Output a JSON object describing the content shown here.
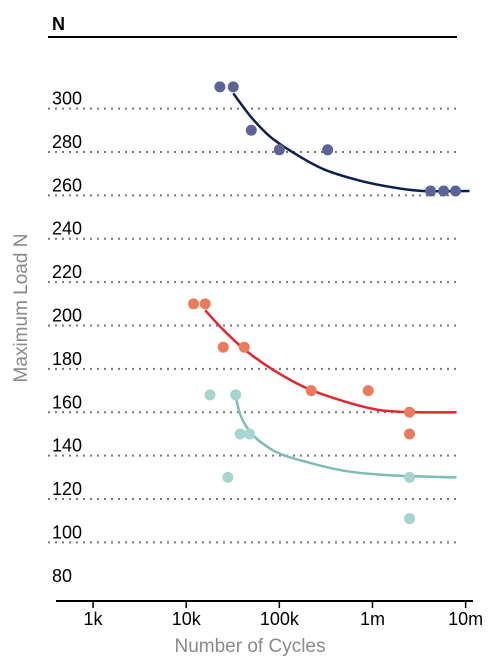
{
  "chart_data": {
    "type": "scatter",
    "xlabel": "Number of Cycles",
    "ylabel": "Maximum Load N",
    "y_unit_label": "N",
    "x_scale": "log",
    "xlim": [
      400,
      12000000
    ],
    "ylim": [
      73,
      333
    ],
    "x_ticks": [
      {
        "value": 1000,
        "label": "1k"
      },
      {
        "value": 10000,
        "label": "10k"
      },
      {
        "value": 100000,
        "label": "100k"
      },
      {
        "value": 1000000,
        "label": "1m"
      },
      {
        "value": 10000000,
        "label": "10m"
      }
    ],
    "y_ticks": [
      {
        "value": 80,
        "label": "80"
      },
      {
        "value": 100,
        "label": "100"
      },
      {
        "value": 120,
        "label": "120"
      },
      {
        "value": 140,
        "label": "140"
      },
      {
        "value": 160,
        "label": "160"
      },
      {
        "value": 180,
        "label": "180"
      },
      {
        "value": 200,
        "label": "200"
      },
      {
        "value": 220,
        "label": "220"
      },
      {
        "value": 240,
        "label": "240"
      },
      {
        "value": 260,
        "label": "260"
      },
      {
        "value": 280,
        "label": "280"
      },
      {
        "value": 300,
        "label": "300"
      }
    ],
    "gridlines": [
      100,
      120,
      140,
      160,
      180,
      200,
      220,
      240,
      260,
      280,
      300
    ],
    "grid_style": "dotted-horizontal",
    "series": [
      {
        "color": "#5b6495",
        "line_color": "#0d2150",
        "points": [
          {
            "x": 23000,
            "y": 310
          },
          {
            "x": 32000,
            "y": 310
          },
          {
            "x": 50000,
            "y": 290
          },
          {
            "x": 100000,
            "y": 281
          },
          {
            "x": 330000,
            "y": 281
          },
          {
            "x": 4200000,
            "y": 262
          },
          {
            "x": 5800000,
            "y": 262
          },
          {
            "x": 7800000,
            "y": 262
          }
        ],
        "fit": [
          {
            "x": 32000,
            "y": 307
          },
          {
            "x": 50000,
            "y": 296
          },
          {
            "x": 80000,
            "y": 287
          },
          {
            "x": 150000,
            "y": 279
          },
          {
            "x": 300000,
            "y": 272
          },
          {
            "x": 700000,
            "y": 267
          },
          {
            "x": 1500000,
            "y": 264
          },
          {
            "x": 3500000,
            "y": 262
          },
          {
            "x": 11000000,
            "y": 262
          }
        ]
      },
      {
        "color": "#ec7b5b",
        "line_color": "#e3262f",
        "points": [
          {
            "x": 12000,
            "y": 210
          },
          {
            "x": 16000,
            "y": 210
          },
          {
            "x": 25000,
            "y": 190
          },
          {
            "x": 42000,
            "y": 190
          },
          {
            "x": 220000,
            "y": 170
          },
          {
            "x": 900000,
            "y": 170
          },
          {
            "x": 2500000,
            "y": 160
          },
          {
            "x": 2500000,
            "y": 150
          }
        ],
        "fit": [
          {
            "x": 16000,
            "y": 207
          },
          {
            "x": 25000,
            "y": 198
          },
          {
            "x": 45000,
            "y": 188
          },
          {
            "x": 90000,
            "y": 179
          },
          {
            "x": 200000,
            "y": 171
          },
          {
            "x": 500000,
            "y": 165
          },
          {
            "x": 1200000,
            "y": 161
          },
          {
            "x": 3000000,
            "y": 160
          },
          {
            "x": 8000000,
            "y": 160
          }
        ]
      },
      {
        "color": "#a6d4d0",
        "line_color": "#7fbcb8",
        "points": [
          {
            "x": 18000,
            "y": 168
          },
          {
            "x": 34000,
            "y": 168
          },
          {
            "x": 38000,
            "y": 150
          },
          {
            "x": 48000,
            "y": 150
          },
          {
            "x": 28000,
            "y": 130
          },
          {
            "x": 2500000,
            "y": 130
          },
          {
            "x": 2500000,
            "y": 111
          }
        ],
        "fit": [
          {
            "x": 34000,
            "y": 167
          },
          {
            "x": 38000,
            "y": 159
          },
          {
            "x": 45000,
            "y": 153
          },
          {
            "x": 60000,
            "y": 147
          },
          {
            "x": 100000,
            "y": 141
          },
          {
            "x": 200000,
            "y": 137
          },
          {
            "x": 500000,
            "y": 133
          },
          {
            "x": 1500000,
            "y": 131
          },
          {
            "x": 8000000,
            "y": 130
          }
        ]
      }
    ]
  }
}
